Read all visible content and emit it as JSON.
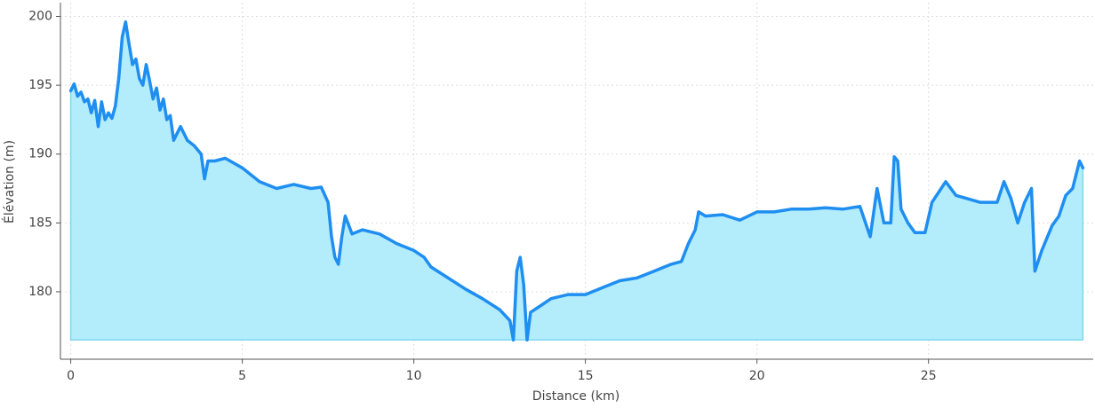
{
  "chart_data": {
    "type": "area-line",
    "x_label": "Distance (km)",
    "y_label": "Élévation (m)",
    "color": "#1f8ef1",
    "fill_color": "#b3ecfb",
    "grid": true,
    "xlim": [
      -0.3,
      29.8
    ],
    "ylim": [
      175.1,
      201
    ],
    "xticks": [
      0,
      5,
      10,
      15,
      20,
      25
    ],
    "yticks": [
      180,
      185,
      190,
      195,
      200
    ],
    "x": [
      0,
      0.1,
      0.2,
      0.3,
      0.4,
      0.5,
      0.6,
      0.7,
      0.8,
      0.9,
      1.0,
      1.1,
      1.2,
      1.3,
      1.4,
      1.5,
      1.6,
      1.7,
      1.8,
      1.9,
      2.0,
      2.1,
      2.2,
      2.3,
      2.4,
      2.5,
      2.6,
      2.7,
      2.8,
      2.9,
      3.0,
      3.2,
      3.4,
      3.6,
      3.8,
      3.9,
      4.0,
      4.2,
      4.5,
      5.0,
      5.5,
      6.0,
      6.5,
      7.0,
      7.3,
      7.5,
      7.6,
      7.7,
      7.8,
      7.9,
      8.0,
      8.2,
      8.5,
      9.0,
      9.5,
      10.0,
      10.3,
      10.5,
      11.0,
      11.5,
      12.0,
      12.5,
      12.8,
      12.9,
      13.0,
      13.1,
      13.2,
      13.3,
      13.4,
      13.7,
      14.0,
      14.5,
      15.0,
      15.5,
      16.0,
      16.5,
      17.0,
      17.5,
      17.8,
      18.0,
      18.2,
      18.3,
      18.5,
      19.0,
      19.5,
      20.0,
      20.5,
      21.0,
      21.5,
      22.0,
      22.5,
      23.0,
      23.3,
      23.5,
      23.7,
      23.9,
      24.0,
      24.1,
      24.2,
      24.4,
      24.6,
      24.9,
      25.1,
      25.5,
      25.8,
      26.5,
      27.0,
      27.2,
      27.4,
      27.6,
      27.8,
      28.0,
      28.1,
      28.3,
      28.6,
      28.8,
      29.0,
      29.2,
      29.4,
      29.5
    ],
    "values": [
      194.6,
      195.1,
      194.2,
      194.5,
      193.8,
      194.0,
      193.0,
      193.9,
      192.0,
      193.8,
      192.5,
      193.0,
      192.6,
      193.5,
      195.5,
      198.5,
      199.6,
      198.0,
      196.5,
      196.9,
      195.5,
      195.0,
      196.5,
      195.3,
      194.0,
      194.8,
      193.2,
      194.0,
      192.5,
      192.8,
      191.0,
      192.0,
      191.0,
      190.6,
      190.0,
      188.2,
      189.5,
      189.5,
      189.7,
      189.0,
      188.0,
      187.5,
      187.8,
      187.5,
      187.6,
      186.5,
      184.0,
      182.5,
      182.0,
      184.0,
      185.5,
      184.2,
      184.5,
      184.2,
      183.5,
      183.0,
      182.5,
      181.8,
      181.0,
      180.2,
      179.5,
      178.7,
      177.9,
      176.5,
      181.5,
      182.5,
      180.5,
      176.5,
      178.5,
      179.0,
      179.5,
      179.8,
      179.8,
      180.3,
      180.8,
      181.0,
      181.5,
      182.0,
      182.2,
      183.5,
      184.5,
      185.8,
      185.5,
      185.6,
      185.2,
      185.8,
      185.8,
      186.0,
      186.0,
      186.1,
      186.0,
      186.2,
      184.0,
      187.5,
      185.0,
      185.0,
      189.8,
      189.5,
      186.0,
      185.0,
      184.3,
      184.3,
      186.5,
      188.0,
      187.0,
      186.5,
      186.5,
      188.0,
      186.8,
      185.0,
      186.5,
      187.5,
      181.5,
      183.0,
      184.8,
      185.5,
      187.0,
      187.5,
      189.5,
      189.0
    ]
  }
}
